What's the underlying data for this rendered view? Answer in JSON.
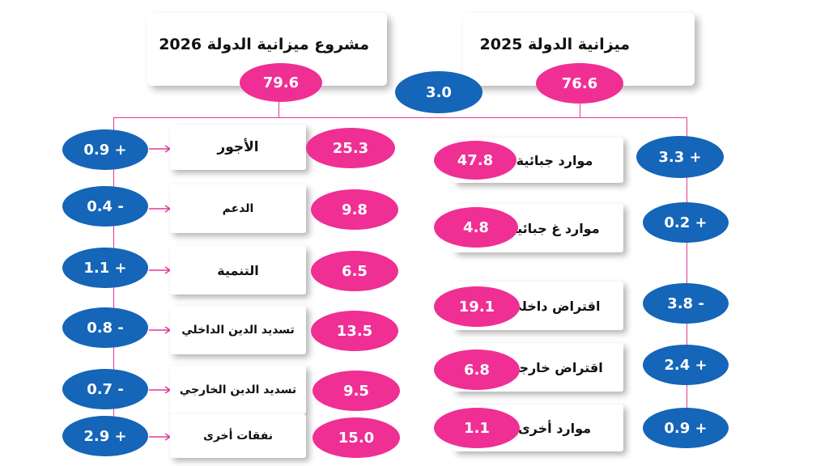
{
  "budget_2026": {
    "title": "مشروع ميزانية الدولة 2026",
    "total": "79.6"
  },
  "budget_2025": {
    "title": "ميزانية الدولة 2025",
    "total": "76.6"
  },
  "difference": "3.0",
  "expenses": [
    {
      "label": "الأجور",
      "value": "25.3",
      "change": "0.9 +"
    },
    {
      "label": "الدعم",
      "value": "9.8",
      "change": "0.4 -"
    },
    {
      "label": "التنمية",
      "value": "6.5",
      "change": "1.1 +"
    },
    {
      "label": "تسديد الدين الداخلي",
      "value": "13.5",
      "change": "0.8 -"
    },
    {
      "label": "تسديد الدين الخارجي",
      "value": "9.5",
      "change": "0.7 -"
    },
    {
      "label": "نفقات أخرى",
      "value": "15.0",
      "change": "2.9 +"
    }
  ],
  "resources": [
    {
      "label": "موارد جبائية",
      "value": "47.8",
      "change": "3.3 +"
    },
    {
      "label": "موارد غ جبائية",
      "value": "4.8",
      "change": "0.2 +"
    },
    {
      "label": "اقتراض داخلي",
      "value": "19.1",
      "change": "3.8 -"
    },
    {
      "label": "اقتراض خارجي",
      "value": "6.8",
      "change": "2.4 +"
    },
    {
      "label": "موارد أخرى",
      "value": "1.1",
      "change": "0.9 +"
    }
  ],
  "colors": {
    "pink": "#ef2f94",
    "blue": "#1565b8",
    "line": "#e8379a"
  }
}
